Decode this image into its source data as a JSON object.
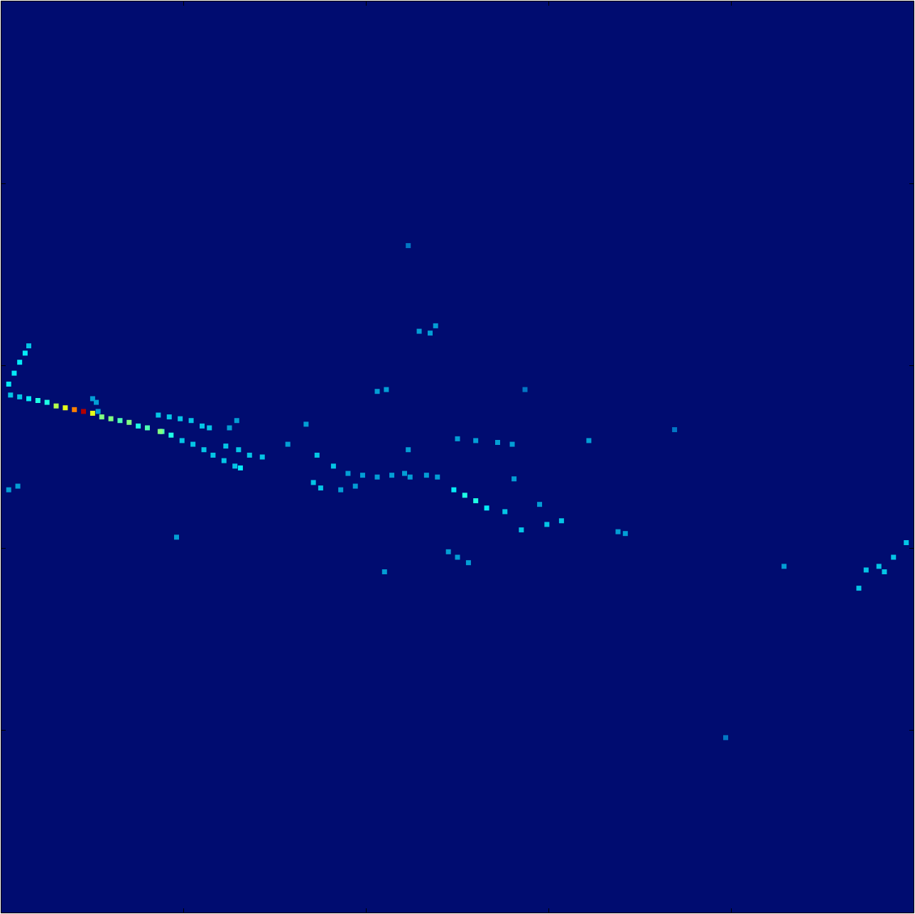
{
  "chart_data": {
    "type": "heatmap",
    "xlim": [
      0,
      50
    ],
    "ylim": [
      50,
      0
    ],
    "xticks": [
      10,
      20,
      30,
      40
    ],
    "yticks": [
      10,
      20,
      30,
      40
    ],
    "tick_labels": false,
    "color": "Jet",
    "zlim": [
      0,
      1
    ],
    "x": [
      0.4,
      0.7,
      1.0,
      1.3,
      1.5,
      0.5,
      1.0,
      1.5,
      2.0,
      2.5,
      3.0,
      3.5,
      4.0,
      4.5,
      5.0,
      5.5,
      6.0,
      6.5,
      7.0,
      7.5,
      8.0,
      8.6,
      9.2,
      9.8,
      10.4,
      11.0,
      11.4,
      8.8,
      9.3,
      9.9,
      10.5,
      11.1,
      11.6,
      12.2,
      12.8,
      13.1,
      5.2,
      5.0,
      5.3,
      12.3,
      13.0,
      13.6,
      14.3,
      12.5,
      12.9,
      16.7,
      15.7,
      17.3,
      18.2,
      19.0,
      19.8,
      20.6,
      21.4,
      22.1,
      22.4,
      17.1,
      17.5,
      18.6,
      19.4,
      25.0,
      26.0,
      27.2,
      28.0,
      23.3,
      23.9,
      24.8,
      25.4,
      26.0,
      26.6,
      27.6,
      28.5,
      29.9,
      30.7,
      24.5,
      25.0,
      25.6,
      22.9,
      23.5,
      23.8,
      20.6,
      21.1,
      22.3,
      32.2,
      33.8,
      34.2,
      21.0,
      9.6,
      0.4,
      0.9,
      47.4,
      48.1,
      48.9,
      49.6,
      47.0,
      48.4,
      42.9,
      39.7,
      36.9,
      22.3,
      28.7,
      28.1,
      29.5,
      8.7
    ],
    "y": [
      21.0,
      20.4,
      19.8,
      19.3,
      18.9,
      21.6,
      21.7,
      21.8,
      21.9,
      22.0,
      22.2,
      22.3,
      22.4,
      22.5,
      22.6,
      22.8,
      22.9,
      23.0,
      23.1,
      23.3,
      23.4,
      22.7,
      22.8,
      22.9,
      23.0,
      23.3,
      23.4,
      23.6,
      23.8,
      24.1,
      24.3,
      24.6,
      24.9,
      25.2,
      25.5,
      25.6,
      22.0,
      21.8,
      22.5,
      24.4,
      24.6,
      24.9,
      25.0,
      23.4,
      23.0,
      23.2,
      24.3,
      24.9,
      25.5,
      25.9,
      26.0,
      26.1,
      26.0,
      25.9,
      26.1,
      26.4,
      26.7,
      26.8,
      26.6,
      24.0,
      24.1,
      24.2,
      24.3,
      26.0,
      26.1,
      26.8,
      27.1,
      27.4,
      27.8,
      28.0,
      29.0,
      28.7,
      28.5,
      30.2,
      30.5,
      30.8,
      18.1,
      18.2,
      17.8,
      21.4,
      21.3,
      24.6,
      24.1,
      29.1,
      29.2,
      31.3,
      29.4,
      26.8,
      26.6,
      31.2,
      31.0,
      30.5,
      29.7,
      32.2,
      31.3,
      31.0,
      40.4,
      23.5,
      13.4,
      21.3,
      26.2,
      27.6,
      23.6
    ],
    "values": [
      0.35,
      0.35,
      0.35,
      0.35,
      0.3,
      0.3,
      0.3,
      0.35,
      0.4,
      0.4,
      0.55,
      0.6,
      0.75,
      0.95,
      0.6,
      0.5,
      0.5,
      0.45,
      0.5,
      0.4,
      0.45,
      0.3,
      0.3,
      0.3,
      0.3,
      0.3,
      0.3,
      0.45,
      0.4,
      0.3,
      0.3,
      0.3,
      0.3,
      0.3,
      0.3,
      0.35,
      0.25,
      0.25,
      0.25,
      0.3,
      0.3,
      0.3,
      0.3,
      0.25,
      0.25,
      0.25,
      0.25,
      0.3,
      0.3,
      0.25,
      0.25,
      0.25,
      0.25,
      0.25,
      0.25,
      0.3,
      0.3,
      0.25,
      0.25,
      0.25,
      0.25,
      0.25,
      0.25,
      0.25,
      0.25,
      0.35,
      0.4,
      0.4,
      0.35,
      0.3,
      0.3,
      0.3,
      0.3,
      0.25,
      0.25,
      0.25,
      0.25,
      0.25,
      0.25,
      0.25,
      0.25,
      0.25,
      0.25,
      0.25,
      0.25,
      0.25,
      0.25,
      0.25,
      0.25,
      0.3,
      0.3,
      0.3,
      0.3,
      0.3,
      0.3,
      0.25,
      0.2,
      0.2,
      0.2,
      0.2,
      0.25,
      0.25,
      0.5
    ]
  }
}
